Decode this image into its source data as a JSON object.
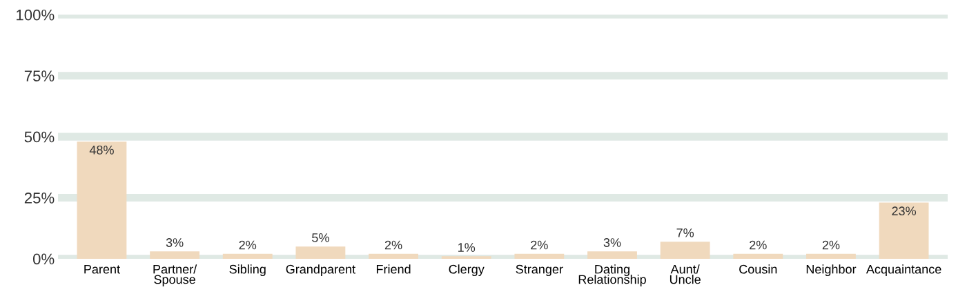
{
  "chart_data": {
    "type": "bar",
    "categories": [
      "Parent",
      "Partner/\nSpouse",
      "Sibling",
      "Grandparent",
      "Friend",
      "Clergy",
      "Stranger",
      "Dating\nRelationship",
      "Aunt/\nUncle",
      "Cousin",
      "Neighbor",
      "Acquaintance"
    ],
    "values": [
      48,
      3,
      2,
      5,
      2,
      1,
      2,
      3,
      7,
      2,
      2,
      23
    ],
    "value_labels": [
      "48%",
      "3%",
      "2%",
      "5%",
      "2%",
      "1%",
      "2%",
      "3%",
      "7%",
      "2%",
      "2%",
      "23%"
    ],
    "color": "#f0d9bd",
    "ylim": [
      0,
      100
    ],
    "yticks": [
      {
        "value": 0,
        "label": "0%"
      },
      {
        "value": 25,
        "label": "25%"
      },
      {
        "value": 50,
        "label": "50%"
      },
      {
        "value": 75,
        "label": "75%"
      },
      {
        "value": 100,
        "label": "100%"
      }
    ],
    "grid": "y"
  }
}
